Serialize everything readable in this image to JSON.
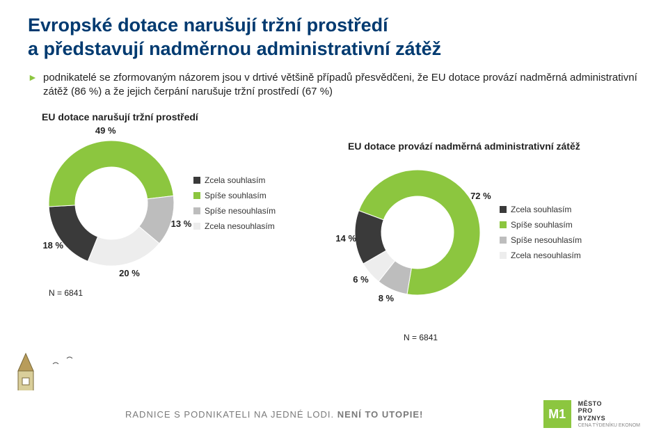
{
  "title_line1": "Evropské dotace narušují tržní prostředí",
  "title_line2": "a představují nadměrnou administrativní zátěž",
  "bullet": "podnikatelé se zformovaným názorem jsou v drtivé většině případů přesvědčeni, že EU dotace provází nadměrná administrativní zátěž (86 %) a že jejich čerpání narušuje tržní prostředí (67 %)",
  "legend": {
    "items": [
      {
        "label": "Zcela souhlasím",
        "color": "#3a3a3a"
      },
      {
        "label": "Spíše souhlasím",
        "color": "#8cc63f"
      },
      {
        "label": "Spíše nesouhlasím",
        "color": "#bdbdbd"
      },
      {
        "label": "Zcela nesouhlasím",
        "color": "#ededed"
      }
    ]
  },
  "chart1": {
    "type": "donut",
    "title": "EU dotace narušují tržní prostředí",
    "background_color": "#ffffff",
    "inner_radius": 52,
    "outer_radius": 90,
    "slices": [
      {
        "label": "18 %",
        "value": 18,
        "color": "#3a3a3a"
      },
      {
        "label": "49 %",
        "value": 49,
        "color": "#8cc63f"
      },
      {
        "label": "13 %",
        "value": 13,
        "color": "#bdbdbd"
      },
      {
        "label": "20 %",
        "value": 20,
        "color": "#ededed"
      }
    ],
    "n_label": "N = 6841"
  },
  "chart2": {
    "type": "donut",
    "title": "EU dotace provází nadměrná administrativní zátěž",
    "background_color": "#ffffff",
    "inner_radius": 52,
    "outer_radius": 90,
    "slices": [
      {
        "label": "14 %",
        "value": 14,
        "color": "#3a3a3a"
      },
      {
        "label": "72 %",
        "value": 72,
        "color": "#8cc63f"
      },
      {
        "label": "8 %",
        "value": 8,
        "color": "#bdbdbd"
      },
      {
        "label": "6 %",
        "value": 6,
        "color": "#ededed"
      }
    ],
    "n_label": "N = 6841"
  },
  "footer": {
    "tagline_main": "RADNICE S PODNIKATELI NA JEDNÉ LODI.",
    "tagline_bold": "NENÍ TO UTOPIE!",
    "logo_symbol": "M1",
    "logo_text": "MĚSTO\nPRO\nBYZNYS",
    "logo_sub": "CENA TÝDENÍKU EKONOM"
  }
}
